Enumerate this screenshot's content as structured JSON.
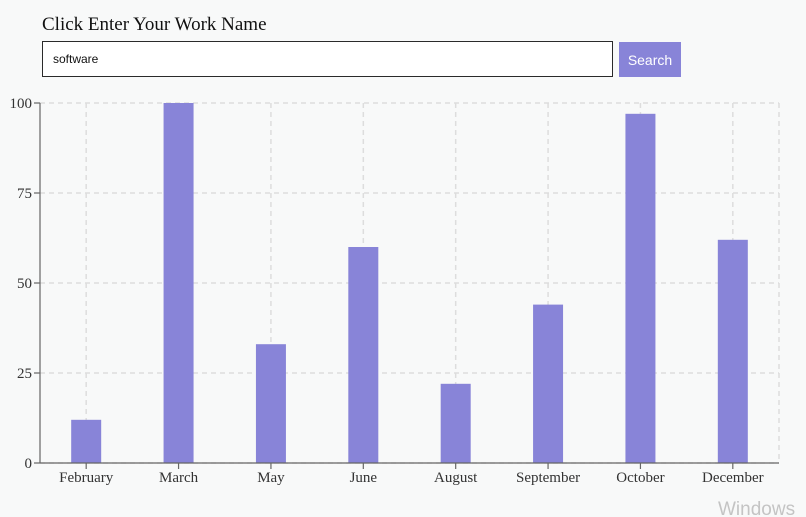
{
  "search": {
    "prompt": "Click Enter Your Work Name",
    "value": "software",
    "button_label": "Search"
  },
  "watermark": "Windows",
  "colors": {
    "bar": "#8884d8",
    "grid": "#dddddd",
    "axis": "#666666",
    "background": "#f8f9f9"
  },
  "chart_data": {
    "type": "bar",
    "categories": [
      "February",
      "March",
      "May",
      "June",
      "August",
      "September",
      "October",
      "December"
    ],
    "values": [
      12,
      100,
      33,
      60,
      22,
      44,
      97,
      62
    ],
    "ylim": [
      0,
      100
    ],
    "yticks": [
      0,
      25,
      50,
      75,
      100
    ],
    "grid": true,
    "grid_style": "dashed"
  }
}
